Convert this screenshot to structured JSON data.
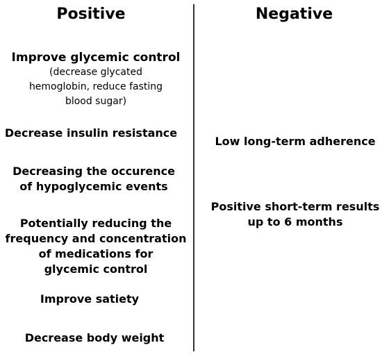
{
  "positive": {
    "heading": "Positive",
    "items": [
      {
        "main": "Improve glycemic control",
        "sub": [
          "(decrease glycated",
          "hemoglobin, reduce fasting",
          "blood sugar)"
        ]
      },
      {
        "lines": [
          "Decrease insulin resistance"
        ]
      },
      {
        "lines": [
          "Decreasing the occurence",
          "of hypoglycemic events"
        ]
      },
      {
        "lines": [
          "Potentially reducing the",
          "frequency and concentration",
          "of medications for",
          "glycemic control"
        ]
      },
      {
        "lines": [
          "Improve satiety"
        ]
      },
      {
        "lines": [
          "Decrease body weight"
        ]
      }
    ]
  },
  "negative": {
    "heading": "Negative",
    "items": [
      {
        "lines": [
          "Low long-term adherence"
        ]
      },
      {
        "lines": [
          "Positive short-term results",
          "up to 6 months"
        ]
      }
    ]
  },
  "colors": {
    "text": "#000000",
    "divider": "#333333",
    "background": "#ffffff"
  }
}
